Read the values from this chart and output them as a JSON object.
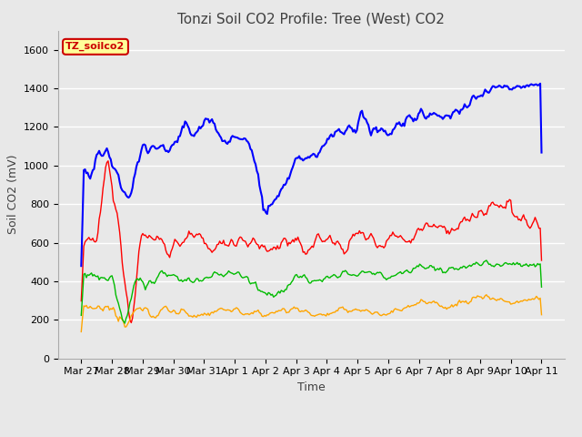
{
  "title": "Tonzi Soil CO2 Profile: Tree (West) CO2",
  "xlabel": "Time",
  "ylabel": "Soil CO2 (mV)",
  "ylim": [
    0,
    1700
  ],
  "yticks": [
    0,
    200,
    400,
    600,
    800,
    1000,
    1200,
    1400,
    1600
  ],
  "xtick_labels": [
    "Mar 27",
    "Mar 28",
    "Mar 29",
    "Mar 30",
    "Mar 31",
    "Apr 1",
    "Apr 2",
    "Apr 3",
    "Apr 4",
    "Apr 5",
    "Apr 6",
    "Apr 7",
    "Apr 8",
    "Apr 9",
    "Apr 10",
    "Apr 11"
  ],
  "series": {
    "-2cm": {
      "color": "#ff0000",
      "linewidth": 1.0
    },
    "-4cm": {
      "color": "#ffa500",
      "linewidth": 1.0
    },
    "-8cm": {
      "color": "#00bb00",
      "linewidth": 1.0
    },
    "-16cm": {
      "color": "#0000ff",
      "linewidth": 1.5
    }
  },
  "legend_label": "TZ_soilco2",
  "legend_color": "#cc0000",
  "legend_bg": "#ffff99",
  "legend_border": "#cc0000",
  "fig_bg": "#e8e8e8",
  "plot_bg": "#e8e8e8",
  "grid_color": "#ffffff",
  "title_fontsize": 11,
  "axis_fontsize": 9,
  "tick_fontsize": 8
}
